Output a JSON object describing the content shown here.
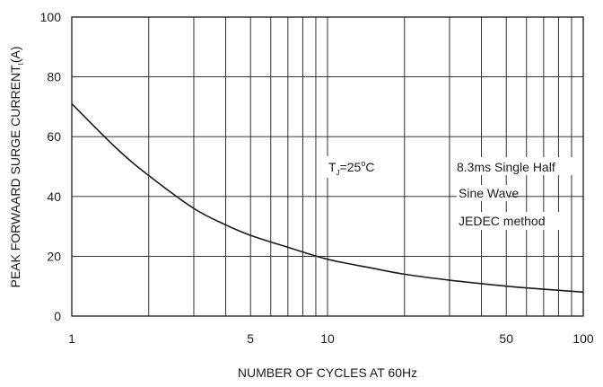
{
  "chart_data": {
    "type": "line",
    "xlabel": "NUMBER OF CYCLES AT 60Hz",
    "ylabel_main": "PEAK FORWAARD SURGE CURRENT",
    "ylabel_sub": "I",
    "ylabel_unit": "(A)",
    "x_scale": "log",
    "xlim": [
      1,
      100
    ],
    "ylim": [
      0,
      100
    ],
    "x_ticks": [
      {
        "value": 1,
        "label": "1"
      },
      {
        "value": 5,
        "label": "5"
      },
      {
        "value": 10,
        "label": "10"
      },
      {
        "value": 50,
        "label": "50"
      },
      {
        "value": 100,
        "label": "100"
      }
    ],
    "y_ticks": [
      {
        "value": 0,
        "label": "0"
      },
      {
        "value": 20,
        "label": "20"
      },
      {
        "value": 40,
        "label": "40"
      },
      {
        "value": 60,
        "label": "60"
      },
      {
        "value": 80,
        "label": "80"
      },
      {
        "value": 100,
        "label": "100"
      }
    ],
    "x_gridlines": [
      1,
      2,
      3,
      4,
      5,
      6,
      7,
      8,
      9,
      10,
      20,
      30,
      40,
      50,
      60,
      70,
      80,
      90,
      100
    ],
    "y_gridlines": [
      20,
      40,
      60,
      80
    ],
    "grid": true,
    "series": [
      {
        "x": [
          1,
          1.5,
          2,
          3,
          4,
          5,
          7,
          10,
          15,
          20,
          30,
          50,
          70,
          100
        ],
        "y": [
          71,
          56,
          47,
          36,
          30.5,
          27,
          23,
          19,
          16,
          14,
          12,
          10,
          9,
          8
        ]
      }
    ],
    "annotations": {
      "temp_prefix": "T",
      "temp_sub": "J",
      "temp_value": "=25",
      "temp_deg": "o",
      "temp_unit": "C",
      "note_line1": "8.3ms Single Half",
      "note_line2": "Sine Wave",
      "note_line3": "JEDEC method"
    },
    "colors": {
      "line": "#1a1a1a",
      "grid": "#1a1a1a"
    }
  }
}
